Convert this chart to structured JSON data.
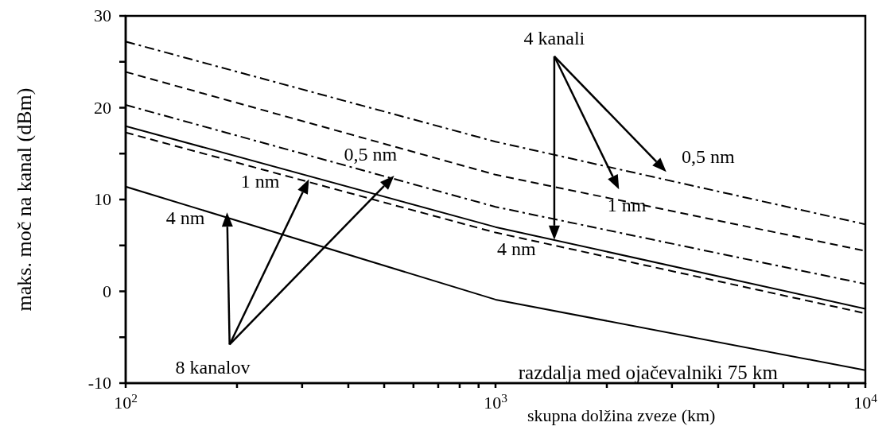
{
  "chart_data": {
    "type": "line",
    "xlabel": "skupna dolžina zveze (km)",
    "ylabel": "maks. moč na kanal (dBm)",
    "log": "x",
    "xlim": [
      100,
      10000
    ],
    "ylim": [
      -10,
      30
    ],
    "xticks": [
      {
        "value": 100,
        "label": "10$^{2}$"
      },
      {
        "value": 200,
        "label": null
      },
      {
        "value": 300,
        "label": null
      },
      {
        "value": 400,
        "label": null
      },
      {
        "value": 500,
        "label": null
      },
      {
        "value": 600,
        "label": null
      },
      {
        "value": 700,
        "label": null
      },
      {
        "value": 800,
        "label": null
      },
      {
        "value": 900,
        "label": null
      },
      {
        "value": 1000,
        "label": "10$^{3}$"
      },
      {
        "value": 2000,
        "label": null
      },
      {
        "value": 3000,
        "label": null
      },
      {
        "value": 4000,
        "label": null
      },
      {
        "value": 5000,
        "label": null
      },
      {
        "value": 6000,
        "label": null
      },
      {
        "value": 7000,
        "label": null
      },
      {
        "value": 8000,
        "label": null
      },
      {
        "value": 9000,
        "label": null
      },
      {
        "value": 10000,
        "label": "10$^{4}$"
      }
    ],
    "yticks": [
      -10,
      {
        "value": -5,
        "label": null
      },
      0,
      {
        "value": 5,
        "label": null
      },
      10,
      {
        "value": 15,
        "label": null
      },
      20,
      {
        "value": 25,
        "label": null
      },
      30
    ],
    "marker": "none",
    "series": [
      {
        "color": "#000000",
        "line_style": "dashdot",
        "x": [
          100,
          1000,
          10000
        ],
        "values": [
          27.2,
          16.3,
          7.3
        ]
      },
      {
        "color": "#000000",
        "line_style": "dashed",
        "x": [
          100,
          1000,
          10000
        ],
        "values": [
          23.9,
          12.7,
          4.4
        ]
      },
      {
        "color": "#000000",
        "line_style": "dashdot",
        "x": [
          100,
          1000,
          10000
        ],
        "values": [
          20.3,
          9.2,
          0.8
        ]
      },
      {
        "color": "#000000",
        "line_style": "solid",
        "x": [
          100,
          1000,
          10000
        ],
        "values": [
          18.0,
          7.0,
          -1.9
        ]
      },
      {
        "color": "#000000",
        "line_style": "dashed",
        "x": [
          100,
          1000,
          10000
        ],
        "values": [
          17.3,
          6.4,
          -2.4
        ]
      },
      {
        "color": "#000000",
        "line_style": "solid",
        "x": [
          100,
          1000,
          10000
        ],
        "values": [
          11.4,
          -0.9,
          -8.6
        ]
      }
    ],
    "annotations": [
      "4 kanali",
      "0,5 nm",
      "1  nm",
      "4  nm",
      "0,5 nm",
      "1  nm",
      "4  nm",
      "8 kanalov",
      "razdalja med ojačevalniki 75 km"
    ]
  }
}
